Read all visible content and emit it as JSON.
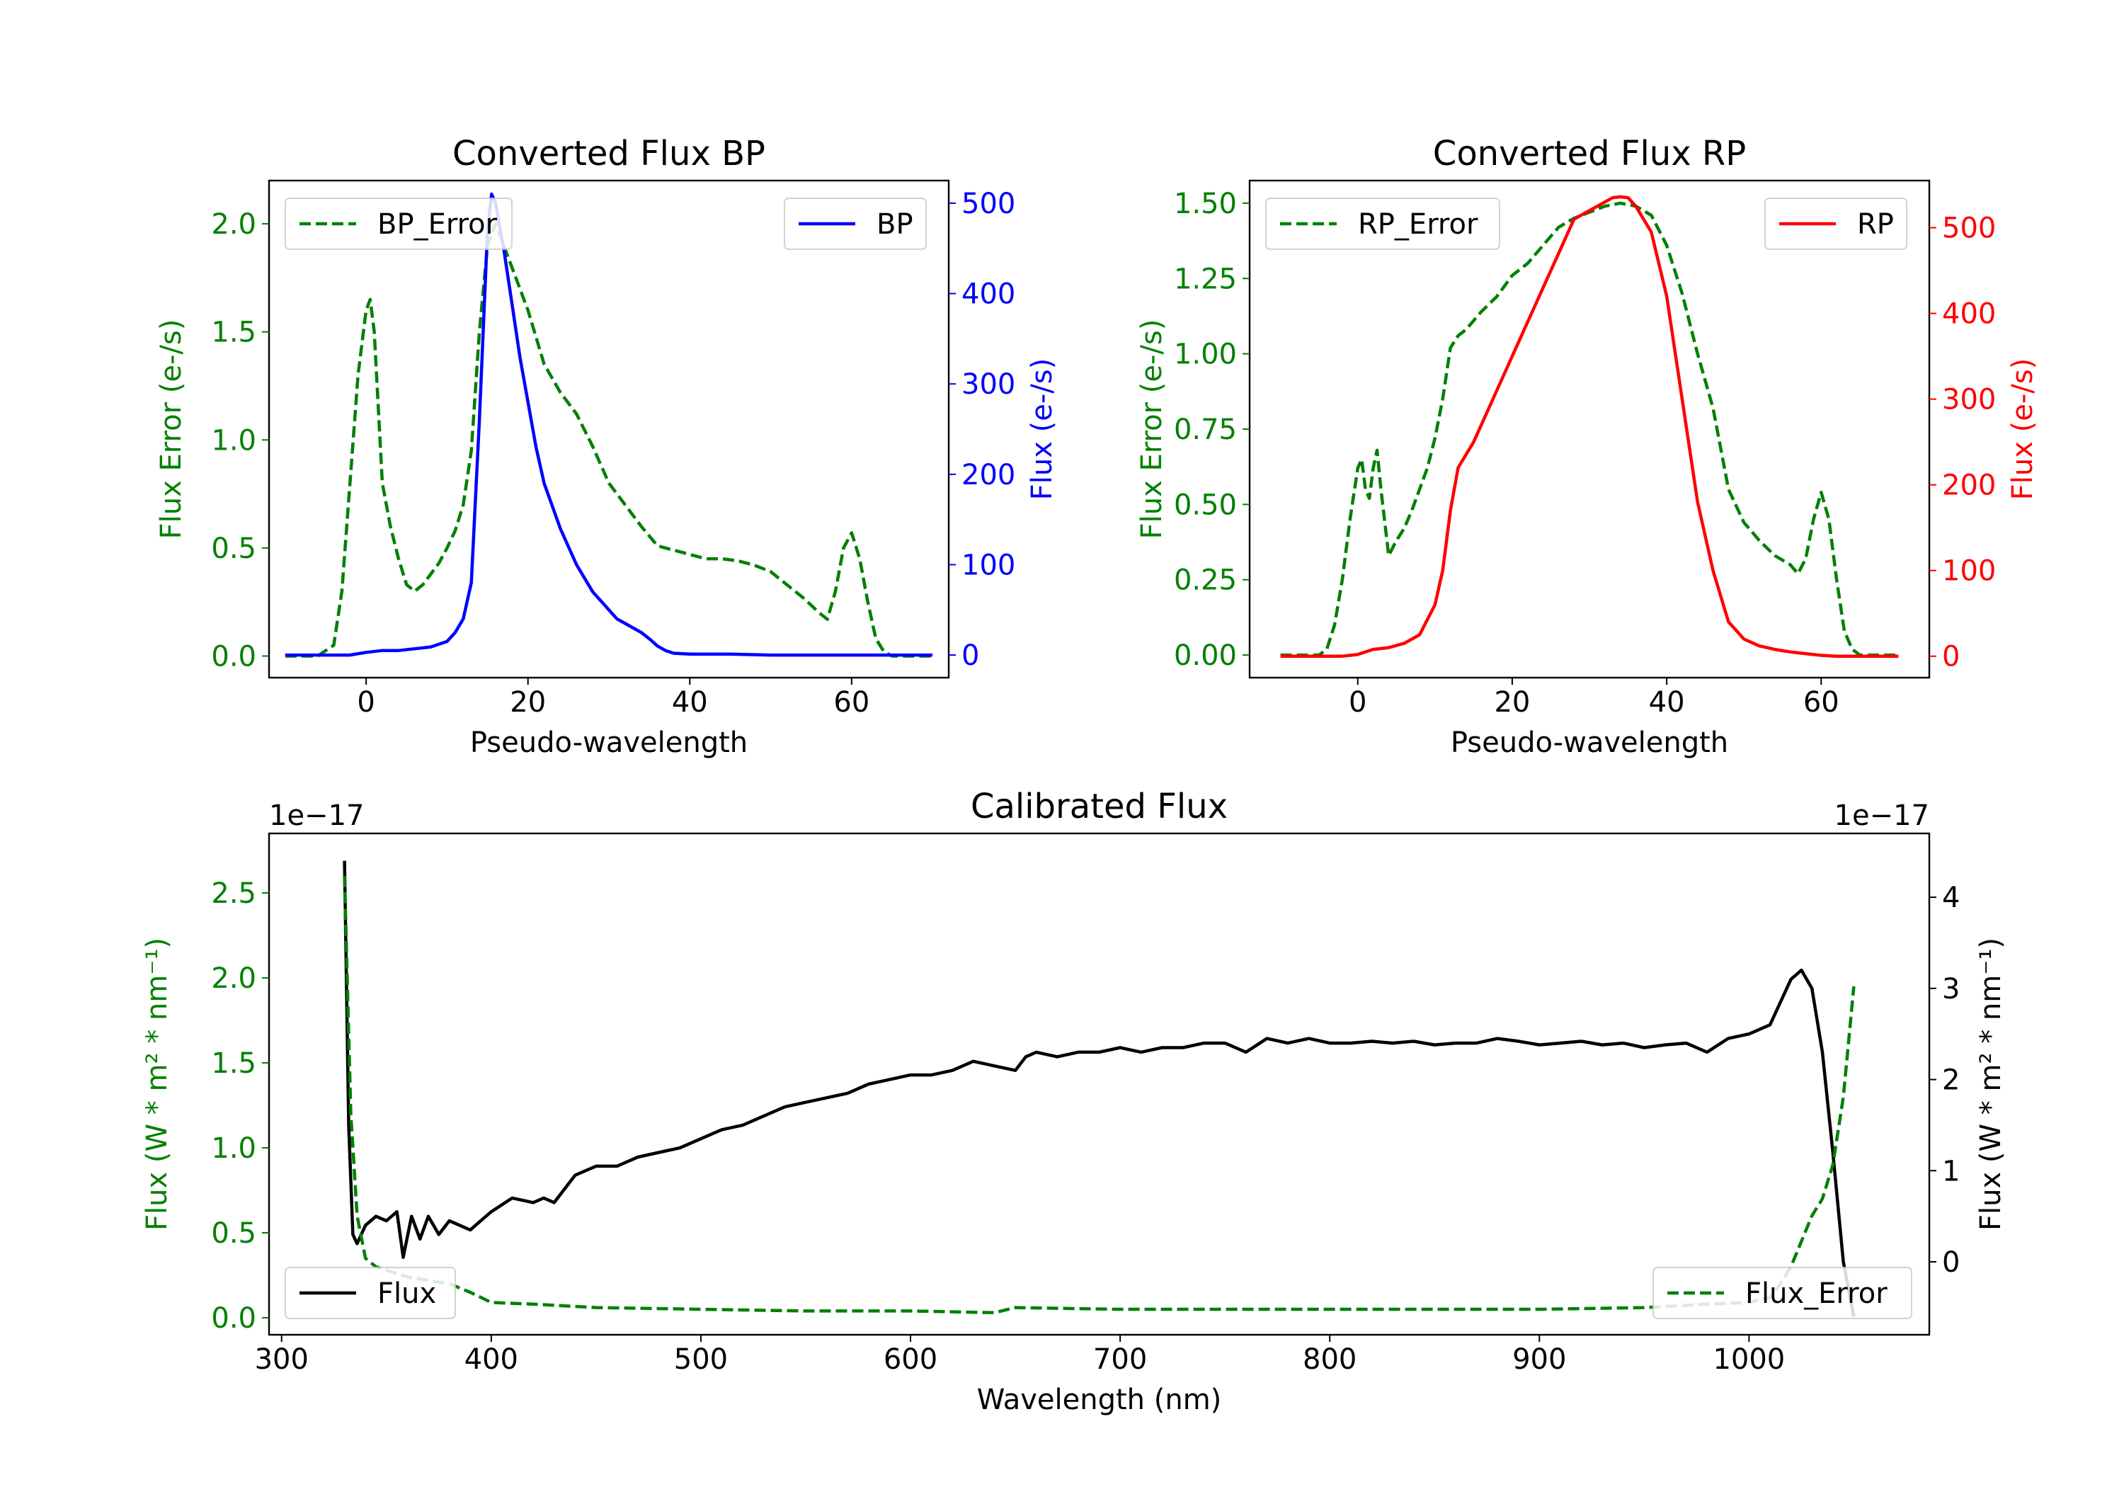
{
  "chart_data": [
    {
      "type": "line",
      "title": "Converted Flux BP",
      "xlabel": "Pseudo-wavelength",
      "ylabel_left": "Flux Error (e-/s)",
      "ylabel_right": "Flux (e-/s)",
      "xlim": [
        -12,
        72
      ],
      "ylim_left": [
        -0.1,
        2.2
      ],
      "ylim_right": [
        -25,
        525
      ],
      "x_ticks": [
        0,
        20,
        40,
        60
      ],
      "y_left_ticks": [
        "0.0",
        "0.5",
        "1.0",
        "1.5",
        "2.0"
      ],
      "y_right_ticks": [
        "0",
        "100",
        "200",
        "300",
        "400",
        "500"
      ],
      "left_color": "#008000",
      "right_color": "#0000ff",
      "series": [
        {
          "name": "BP_Error",
          "axis": "left",
          "style": "dashed",
          "color": "#008000",
          "x": [
            -10,
            -6,
            -4,
            -3,
            -2,
            -1,
            0,
            0.5,
            1,
            2,
            3,
            4,
            5,
            6,
            7,
            8,
            9,
            10,
            11,
            12,
            13,
            14,
            15,
            16,
            17,
            18,
            19,
            20,
            22,
            24,
            26,
            28,
            30,
            32,
            34,
            36,
            38,
            40,
            42,
            44,
            46,
            48,
            50,
            52,
            54,
            56,
            57,
            58,
            59,
            60,
            61,
            62,
            63,
            64,
            65,
            66,
            70
          ],
          "values": [
            0.0,
            0.0,
            0.05,
            0.3,
            0.8,
            1.3,
            1.6,
            1.65,
            1.5,
            0.8,
            0.6,
            0.45,
            0.33,
            0.3,
            0.33,
            0.38,
            0.43,
            0.5,
            0.58,
            0.7,
            0.95,
            1.5,
            1.9,
            2.0,
            1.9,
            1.8,
            1.7,
            1.6,
            1.35,
            1.22,
            1.12,
            0.97,
            0.8,
            0.7,
            0.6,
            0.51,
            0.49,
            0.47,
            0.45,
            0.45,
            0.44,
            0.42,
            0.39,
            0.33,
            0.27,
            0.2,
            0.17,
            0.3,
            0.5,
            0.57,
            0.45,
            0.25,
            0.08,
            0.02,
            0.0,
            0.0,
            0.0
          ]
        },
        {
          "name": "BP",
          "axis": "right",
          "style": "solid",
          "color": "#0000ff",
          "x": [
            -10,
            -2,
            0,
            2,
            4,
            6,
            8,
            10,
            11,
            12,
            13,
            14,
            15,
            15.5,
            16,
            17,
            18,
            19,
            20,
            21,
            22,
            24,
            26,
            28,
            30,
            31,
            32,
            34,
            35,
            36,
            37,
            38,
            40,
            45,
            50,
            55,
            60,
            65,
            70
          ],
          "values": [
            0,
            0,
            3,
            5,
            5,
            7,
            9,
            15,
            25,
            40,
            80,
            260,
            470,
            510,
            500,
            450,
            390,
            330,
            280,
            230,
            190,
            140,
            100,
            70,
            50,
            40,
            35,
            25,
            18,
            10,
            5,
            2,
            1,
            1,
            0,
            0,
            0,
            0,
            0
          ]
        }
      ],
      "legend_left": "BP_Error",
      "legend_right": "BP"
    },
    {
      "type": "line",
      "title": "Converted Flux RP",
      "xlabel": "Pseudo-wavelength",
      "ylabel_left": "Flux Error (e-/s)",
      "ylabel_right": "Flux (e-/s)",
      "xlim": [
        -14,
        74
      ],
      "ylim_left": [
        -0.075,
        1.575
      ],
      "ylim_right": [
        -25,
        555
      ],
      "x_ticks": [
        0,
        20,
        40,
        60
      ],
      "y_left_ticks": [
        "0.00",
        "0.25",
        "0.50",
        "0.75",
        "1.00",
        "1.25",
        "1.50"
      ],
      "y_right_ticks": [
        "0",
        "100",
        "200",
        "300",
        "400",
        "500"
      ],
      "left_color": "#008000",
      "right_color": "#ff0000",
      "series": [
        {
          "name": "RP_Error",
          "axis": "left",
          "style": "dashed",
          "color": "#008000",
          "x": [
            -10,
            -5,
            -4,
            -3,
            -2,
            -1,
            0,
            0.5,
            1,
            1.5,
            2,
            2.5,
            3,
            4,
            5,
            6,
            7,
            8,
            9,
            10,
            11,
            12,
            13,
            14,
            16,
            18,
            20,
            22,
            24,
            26,
            28,
            30,
            32,
            34,
            36,
            38,
            40,
            42,
            44,
            46,
            48,
            50,
            52,
            54,
            56,
            57,
            58,
            59,
            60,
            61,
            62,
            63,
            64,
            65,
            70
          ],
          "values": [
            0.0,
            0.0,
            0.02,
            0.1,
            0.25,
            0.45,
            0.62,
            0.65,
            0.55,
            0.52,
            0.62,
            0.68,
            0.55,
            0.33,
            0.38,
            0.42,
            0.48,
            0.55,
            0.62,
            0.72,
            0.85,
            1.02,
            1.06,
            1.08,
            1.14,
            1.19,
            1.26,
            1.3,
            1.36,
            1.42,
            1.45,
            1.47,
            1.49,
            1.5,
            1.49,
            1.46,
            1.36,
            1.2,
            1.0,
            0.82,
            0.55,
            0.44,
            0.38,
            0.33,
            0.3,
            0.27,
            0.32,
            0.45,
            0.54,
            0.45,
            0.25,
            0.08,
            0.02,
            0.0,
            0.0
          ]
        },
        {
          "name": "RP",
          "axis": "right",
          "style": "solid",
          "color": "#ff0000",
          "x": [
            -10,
            -2,
            0,
            2,
            4,
            6,
            8,
            10,
            11,
            12,
            13,
            14,
            15,
            16,
            18,
            20,
            22,
            24,
            26,
            28,
            30,
            32,
            33,
            34,
            35,
            36,
            38,
            40,
            42,
            44,
            46,
            48,
            50,
            52,
            54,
            56,
            58,
            60,
            62,
            66,
            70
          ],
          "values": [
            0,
            0,
            2,
            8,
            10,
            15,
            25,
            60,
            100,
            170,
            220,
            235,
            250,
            270,
            310,
            350,
            390,
            430,
            470,
            510,
            520,
            530,
            535,
            536,
            535,
            525,
            495,
            420,
            300,
            180,
            100,
            40,
            20,
            12,
            8,
            5,
            3,
            1,
            0,
            0,
            0
          ]
        }
      ],
      "legend_left": "RP_Error",
      "legend_right": "RP"
    },
    {
      "type": "line",
      "title": "Calibrated Flux",
      "xlabel": "Wavelength (nm)",
      "ylabel_left": "Flux (W * m² * nm⁻¹)",
      "ylabel_right": "Flux (W * m² * nm⁻¹)",
      "scale_left": "1e−17",
      "scale_right": "1e−17",
      "xlim": [
        294,
        1086
      ],
      "ylim_left": [
        -0.1,
        2.85
      ],
      "ylim_right": [
        -0.8,
        4.7
      ],
      "x_ticks": [
        "300",
        "400",
        "500",
        "600",
        "700",
        "800",
        "900",
        "1000"
      ],
      "y_left_ticks": [
        "0.0",
        "0.5",
        "1.0",
        "1.5",
        "2.0",
        "2.5"
      ],
      "y_right_ticks": [
        "0",
        "1",
        "2",
        "3",
        "4"
      ],
      "left_color": "#008000",
      "right_color": "#000000",
      "series": [
        {
          "name": "Flux",
          "axis": "right",
          "style": "solid",
          "color": "#000000",
          "x": [
            330,
            332,
            334,
            336,
            340,
            345,
            350,
            355,
            358,
            362,
            366,
            370,
            375,
            380,
            385,
            390,
            395,
            400,
            410,
            420,
            425,
            430,
            440,
            450,
            460,
            470,
            480,
            490,
            500,
            510,
            520,
            530,
            540,
            550,
            560,
            570,
            580,
            590,
            600,
            610,
            620,
            630,
            640,
            650,
            655,
            660,
            670,
            680,
            690,
            700,
            710,
            720,
            730,
            740,
            750,
            760,
            770,
            780,
            790,
            800,
            810,
            820,
            830,
            840,
            850,
            860,
            870,
            880,
            890,
            900,
            910,
            920,
            930,
            940,
            950,
            960,
            970,
            980,
            990,
            1000,
            1010,
            1020,
            1025,
            1030,
            1035,
            1040,
            1045,
            1050
          ],
          "values": [
            4.4,
            1.5,
            0.3,
            0.2,
            0.4,
            0.5,
            0.45,
            0.55,
            0.05,
            0.5,
            0.25,
            0.5,
            0.3,
            0.45,
            0.4,
            0.35,
            0.45,
            0.55,
            0.7,
            0.65,
            0.7,
            0.65,
            0.95,
            1.05,
            1.05,
            1.15,
            1.2,
            1.25,
            1.35,
            1.45,
            1.5,
            1.6,
            1.7,
            1.75,
            1.8,
            1.85,
            1.95,
            2.0,
            2.05,
            2.05,
            2.1,
            2.2,
            2.15,
            2.1,
            2.25,
            2.3,
            2.25,
            2.3,
            2.3,
            2.35,
            2.3,
            2.35,
            2.35,
            2.4,
            2.4,
            2.3,
            2.45,
            2.4,
            2.45,
            2.4,
            2.4,
            2.42,
            2.4,
            2.42,
            2.38,
            2.4,
            2.4,
            2.45,
            2.42,
            2.38,
            2.4,
            2.42,
            2.38,
            2.4,
            2.35,
            2.38,
            2.4,
            2.3,
            2.45,
            2.5,
            2.6,
            3.1,
            3.2,
            3.0,
            2.3,
            1.2,
            0.0,
            -0.6
          ]
        },
        {
          "name": "Flux_Error",
          "axis": "left",
          "style": "dashed",
          "color": "#008000",
          "x": [
            330,
            333,
            336,
            340,
            345,
            350,
            360,
            370,
            380,
            390,
            400,
            420,
            450,
            500,
            550,
            600,
            640,
            650,
            700,
            750,
            800,
            850,
            900,
            950,
            980,
            1000,
            1010,
            1015,
            1020,
            1025,
            1030,
            1035,
            1040,
            1045,
            1050
          ],
          "values": [
            2.6,
            1.2,
            0.6,
            0.35,
            0.3,
            0.28,
            0.24,
            0.22,
            0.2,
            0.15,
            0.09,
            0.08,
            0.06,
            0.05,
            0.04,
            0.04,
            0.03,
            0.06,
            0.05,
            0.05,
            0.05,
            0.05,
            0.05,
            0.06,
            0.08,
            0.09,
            0.12,
            0.2,
            0.3,
            0.45,
            0.6,
            0.7,
            0.9,
            1.3,
            1.95
          ]
        }
      ],
      "legend_left": "Flux",
      "legend_right": "Flux_Error"
    }
  ]
}
